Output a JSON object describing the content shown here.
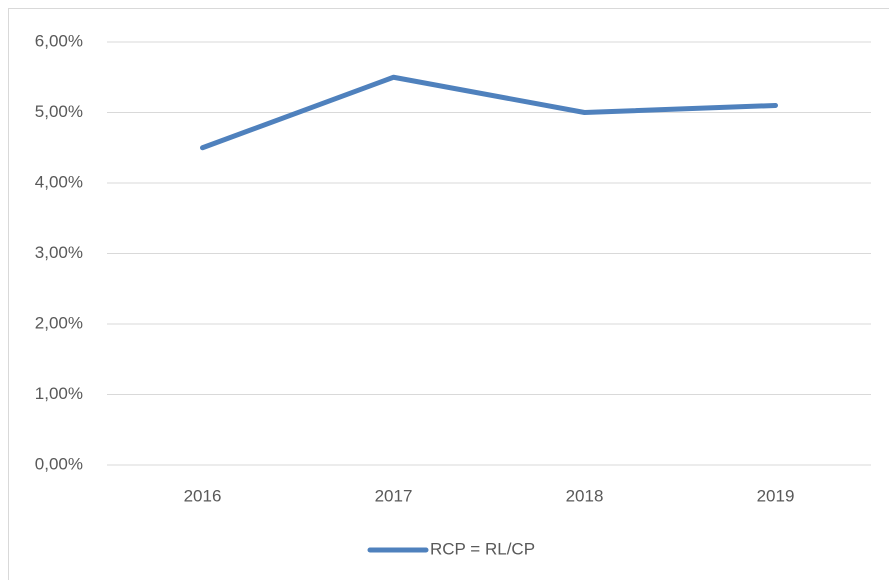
{
  "chart_data": {
    "type": "line",
    "categories": [
      "2016",
      "2017",
      "2018",
      "2019"
    ],
    "series": [
      {
        "name": "RCP = RL/CP",
        "color": "#4f81bd",
        "values": [
          4.5,
          5.5,
          5.0,
          5.1
        ]
      }
    ],
    "ylim": [
      0,
      6
    ],
    "yticks": [
      {
        "value": 0,
        "label": "0,00%"
      },
      {
        "value": 1,
        "label": "1,00%"
      },
      {
        "value": 2,
        "label": "2,00%"
      },
      {
        "value": 3,
        "label": "3,00%"
      },
      {
        "value": 4,
        "label": "4,00%"
      },
      {
        "value": 5,
        "label": "5,00%"
      },
      {
        "value": 6,
        "label": "6,00%"
      }
    ],
    "grid": true,
    "legend": "bottom"
  }
}
